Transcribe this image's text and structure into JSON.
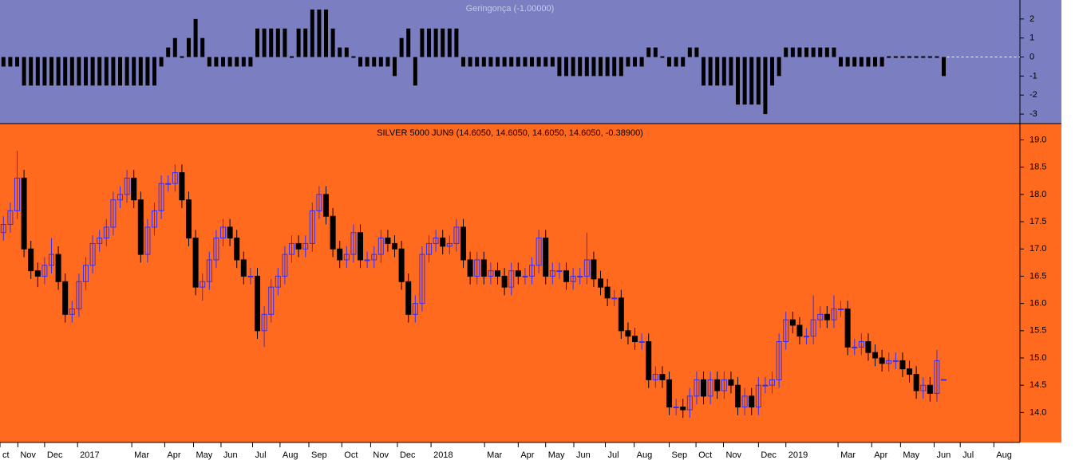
{
  "chart_data": [
    {
      "type": "bar",
      "title": "Geringonça (-1.00000)",
      "color": "#000000",
      "values": [
        -0.5,
        -0.5,
        -0.5,
        -1.5,
        -1.5,
        -1.5,
        -1.5,
        -1.5,
        -1.5,
        -1.5,
        -1.5,
        -1.5,
        -1.5,
        -1.5,
        -1.5,
        -1.5,
        -1.5,
        -1.5,
        -1.5,
        -1.5,
        -1.5,
        -1.5,
        -1.5,
        -0.5,
        0.5,
        1,
        0,
        1,
        2,
        1,
        -0.5,
        -0.5,
        -0.5,
        -0.5,
        -0.5,
        -0.5,
        -0.5,
        1.5,
        1.5,
        1.5,
        1.5,
        1.5,
        0,
        1.5,
        1.5,
        2.5,
        2.5,
        2.5,
        1.5,
        0.5,
        0.5,
        0,
        -0.5,
        -0.5,
        -0.5,
        -0.5,
        -0.5,
        -1,
        1,
        1.5,
        -1.5,
        1.5,
        1.5,
        1.5,
        1.5,
        1.5,
        1.5,
        -0.5,
        -0.5,
        -0.5,
        -0.5,
        -0.5,
        -0.5,
        -0.5,
        -0.5,
        -0.5,
        -0.5,
        -0.5,
        -0.5,
        -0.5,
        -0.5,
        -1,
        -1,
        -1,
        -1,
        -1,
        -1,
        -1,
        -1,
        -1,
        -1,
        -0.5,
        -0.5,
        -0.5,
        0.5,
        0.5,
        0,
        -0.5,
        -0.5,
        -0.5,
        0.5,
        0.5,
        -1.5,
        -1.5,
        -1.5,
        -1.5,
        -1.5,
        -2.5,
        -2.5,
        -2.5,
        -2.5,
        -3,
        -1.5,
        -1,
        0.5,
        0.5,
        0.5,
        0.5,
        0.5,
        0.5,
        0.5,
        0.5,
        -0.5,
        -0.5,
        -0.5,
        -0.5,
        -0.5,
        -0.5,
        -0.5,
        0,
        0,
        0,
        0,
        0,
        0,
        0,
        0,
        -1
      ],
      "xlim": [
        -0.5,
        148.1
      ],
      "ylim": [
        -3.5,
        3
      ],
      "yticks": [
        2,
        1,
        0,
        -1,
        -2,
        -3
      ]
    },
    {
      "type": "candlestick",
      "title": "SILVER 5000 JUN9 (14.6050, 14.6050, 14.6050, 14.6050, -0.38900)",
      "up_color": "#3030ff",
      "down_color": "#000000",
      "open": [
        17.3,
        17.45,
        17.7,
        18.3,
        17.0,
        16.6,
        16.5,
        16.7,
        16.9,
        16.4,
        15.8,
        15.9,
        16.4,
        16.7,
        17.1,
        17.2,
        17.4,
        17.9,
        18.0,
        18.3,
        17.9,
        16.9,
        17.4,
        17.7,
        18.2,
        18.2,
        18.4,
        17.9,
        17.2,
        16.3,
        16.4,
        16.8,
        17.2,
        17.4,
        17.2,
        16.8,
        16.5,
        16.5,
        15.5,
        15.8,
        16.3,
        16.5,
        16.9,
        17.1,
        17.0,
        17.1,
        17.7,
        18.0,
        17.6,
        17.0,
        16.8,
        16.9,
        17.3,
        16.8,
        16.8,
        16.9,
        17.2,
        17.1,
        17.0,
        16.4,
        15.8,
        16.0,
        16.9,
        17.1,
        17.2,
        17.05,
        17.1,
        17.4,
        16.8,
        16.5,
        16.8,
        16.5,
        16.6,
        16.5,
        16.3,
        16.6,
        16.5,
        16.5,
        16.7,
        17.2,
        16.5,
        16.6,
        16.6,
        16.4,
        16.5,
        16.5,
        16.8,
        16.45,
        16.3,
        16.1,
        16.1,
        15.5,
        15.4,
        15.3,
        15.3,
        14.6,
        14.7,
        14.6,
        14.1,
        14.1,
        14.05,
        14.3,
        14.6,
        14.3,
        14.6,
        14.4,
        14.6,
        14.5,
        14.1,
        14.3,
        14.1,
        14.5,
        14.5,
        14.6,
        15.3,
        15.7,
        15.6,
        15.4,
        15.4,
        15.7,
        15.8,
        15.7,
        15.9,
        15.9,
        15.2,
        15.2,
        15.3,
        15.1,
        15.0,
        14.9,
        14.95,
        14.95,
        14.8,
        14.7,
        14.4,
        14.5,
        14.35,
        14.605
      ],
      "high": [
        17.6,
        17.85,
        18.8,
        18.45,
        17.15,
        16.75,
        16.85,
        17.2,
        17.05,
        16.55,
        16.05,
        16.55,
        16.85,
        17.25,
        17.35,
        17.55,
        18.05,
        18.15,
        18.45,
        18.45,
        18.05,
        17.55,
        17.85,
        18.35,
        18.35,
        18.55,
        18.55,
        18.05,
        17.35,
        16.55,
        16.95,
        17.35,
        17.55,
        17.55,
        17.35,
        16.95,
        16.65,
        16.65,
        15.95,
        16.45,
        16.65,
        17.05,
        17.25,
        17.25,
        17.25,
        17.85,
        18.15,
        18.15,
        17.75,
        17.15,
        17.05,
        17.45,
        17.45,
        16.95,
        17.05,
        17.35,
        17.35,
        17.25,
        17.15,
        16.55,
        16.15,
        17.05,
        17.25,
        17.35,
        17.35,
        17.25,
        17.55,
        17.55,
        16.95,
        16.95,
        16.95,
        16.75,
        16.75,
        16.65,
        16.75,
        16.75,
        16.65,
        16.85,
        17.35,
        17.35,
        16.75,
        16.75,
        16.75,
        16.65,
        16.65,
        17.3,
        16.95,
        16.6,
        16.45,
        16.25,
        16.25,
        15.65,
        15.55,
        15.45,
        15.45,
        14.85,
        14.85,
        14.75,
        14.25,
        14.25,
        14.45,
        14.75,
        14.75,
        14.75,
        14.75,
        14.75,
        14.75,
        14.65,
        14.45,
        14.45,
        14.65,
        14.65,
        14.75,
        15.45,
        15.85,
        15.85,
        15.75,
        15.55,
        16.15,
        15.95,
        15.95,
        16.15,
        16.05,
        16.05,
        15.35,
        15.45,
        15.45,
        15.25,
        15.15,
        15.1,
        15.1,
        15.1,
        14.95,
        14.85,
        14.65,
        14.65,
        15.15,
        14.605
      ],
      "low": [
        17.15,
        17.3,
        17.55,
        16.85,
        16.45,
        16.3,
        16.35,
        16.55,
        16.25,
        15.65,
        15.65,
        15.75,
        16.25,
        16.55,
        16.95,
        17.05,
        17.25,
        17.75,
        17.85,
        17.75,
        16.75,
        16.75,
        17.25,
        17.55,
        18.05,
        18.05,
        17.75,
        17.05,
        16.15,
        16.05,
        16.25,
        16.65,
        17.05,
        17.05,
        16.65,
        16.35,
        16.35,
        15.35,
        15.2,
        15.65,
        16.15,
        16.35,
        16.75,
        16.85,
        16.85,
        16.95,
        17.55,
        17.45,
        16.85,
        16.65,
        16.65,
        16.75,
        16.65,
        16.65,
        16.65,
        16.75,
        16.95,
        16.85,
        16.25,
        15.65,
        15.65,
        15.85,
        16.75,
        16.95,
        16.9,
        16.9,
        16.95,
        16.65,
        16.35,
        16.35,
        16.35,
        16.35,
        16.35,
        16.15,
        16.15,
        16.35,
        16.35,
        16.35,
        16.55,
        16.35,
        16.35,
        16.45,
        16.25,
        16.25,
        16.35,
        16.35,
        16.3,
        16.15,
        15.95,
        15.95,
        15.35,
        15.25,
        15.15,
        15.15,
        14.45,
        14.45,
        14.45,
        13.95,
        13.95,
        13.9,
        13.9,
        14.15,
        14.15,
        14.15,
        14.25,
        14.25,
        14.35,
        13.95,
        13.95,
        13.95,
        13.95,
        14.35,
        14.35,
        14.45,
        15.15,
        15.45,
        15.25,
        15.25,
        15.25,
        15.55,
        15.55,
        15.55,
        15.75,
        15.05,
        15.05,
        15.05,
        14.95,
        14.85,
        14.75,
        14.75,
        14.8,
        14.65,
        14.55,
        14.25,
        14.25,
        14.2,
        14.2,
        14.605
      ],
      "close": [
        17.45,
        17.7,
        18.3,
        17.0,
        16.6,
        16.5,
        16.7,
        16.9,
        16.4,
        15.8,
        15.9,
        16.4,
        16.7,
        17.1,
        17.2,
        17.4,
        17.9,
        18.0,
        18.3,
        17.9,
        16.9,
        17.4,
        17.7,
        18.2,
        18.2,
        18.4,
        17.9,
        17.2,
        16.3,
        16.4,
        16.8,
        17.2,
        17.4,
        17.2,
        16.8,
        16.5,
        16.5,
        15.5,
        15.8,
        16.3,
        16.5,
        16.9,
        17.1,
        17.0,
        17.1,
        17.7,
        18.0,
        17.6,
        17.0,
        16.8,
        16.9,
        17.3,
        16.8,
        16.8,
        16.9,
        17.2,
        17.1,
        17.0,
        16.4,
        15.8,
        16.0,
        16.9,
        17.1,
        17.2,
        17.05,
        17.1,
        17.4,
        16.8,
        16.5,
        16.8,
        16.5,
        16.6,
        16.5,
        16.3,
        16.6,
        16.5,
        16.5,
        16.7,
        17.2,
        16.5,
        16.6,
        16.6,
        16.4,
        16.5,
        16.5,
        16.8,
        16.45,
        16.3,
        16.1,
        16.1,
        15.5,
        15.4,
        15.3,
        15.3,
        14.6,
        14.7,
        14.6,
        14.1,
        14.1,
        14.05,
        14.3,
        14.6,
        14.3,
        14.6,
        14.4,
        14.6,
        14.5,
        14.1,
        14.3,
        14.1,
        14.5,
        14.5,
        14.6,
        15.3,
        15.7,
        15.6,
        15.4,
        15.4,
        15.7,
        15.8,
        15.7,
        15.9,
        15.9,
        15.2,
        15.2,
        15.3,
        15.1,
        15.0,
        14.9,
        14.95,
        14.95,
        14.8,
        14.7,
        14.4,
        14.5,
        14.35,
        14.95,
        14.605
      ],
      "xlim": [
        -0.5,
        148.1
      ],
      "ylim": [
        13.45,
        19.3
      ],
      "yticks": [
        {
          "value": 14,
          "label": "14.0"
        },
        {
          "value": 14.5,
          "label": "14.5"
        },
        {
          "value": 15,
          "label": "15.0"
        },
        {
          "value": 15.5,
          "label": "15.5"
        },
        {
          "value": 16,
          "label": "16.0"
        },
        {
          "value": 16.5,
          "label": "16.5"
        },
        {
          "value": 17,
          "label": "17.0"
        },
        {
          "value": 17.5,
          "label": "17.5"
        },
        {
          "value": 18,
          "label": "18.0"
        },
        {
          "value": 18.5,
          "label": "18.5"
        },
        {
          "value": 19,
          "label": "19.0"
        }
      ],
      "xticks": [
        {
          "value": -0.5,
          "label": "ct"
        },
        {
          "value": 2.1,
          "label": "Nov"
        },
        {
          "value": 6,
          "label": "Dec"
        },
        {
          "value": 10.8,
          "label": "2017"
        },
        {
          "value": 18.7,
          "label": "Mar"
        },
        {
          "value": 23.5,
          "label": "Apr"
        },
        {
          "value": 27.7,
          "label": "May"
        },
        {
          "value": 31.7,
          "label": "Jun"
        },
        {
          "value": 36.3,
          "label": "Jul"
        },
        {
          "value": 40.3,
          "label": "Aug"
        },
        {
          "value": 44.5,
          "label": "Sep"
        },
        {
          "value": 49.3,
          "label": "Oct"
        },
        {
          "value": 53.5,
          "label": "Nov"
        },
        {
          "value": 57.4,
          "label": "Dec"
        },
        {
          "value": 62.3,
          "label": "2018"
        },
        {
          "value": 70.1,
          "label": "Mar"
        },
        {
          "value": 75,
          "label": "Apr"
        },
        {
          "value": 79,
          "label": "May"
        },
        {
          "value": 83.1,
          "label": "Jun"
        },
        {
          "value": 87.7,
          "label": "Jul"
        },
        {
          "value": 91.9,
          "label": "Aug"
        },
        {
          "value": 97,
          "label": "Sep"
        },
        {
          "value": 100.9,
          "label": "Oct"
        },
        {
          "value": 104.9,
          "label": "Nov"
        },
        {
          "value": 110,
          "label": "Dec"
        },
        {
          "value": 114,
          "label": "2019"
        },
        {
          "value": 121.6,
          "label": "Mar"
        },
        {
          "value": 126.5,
          "label": "Apr"
        },
        {
          "value": 130.7,
          "label": "May"
        },
        {
          "value": 135.6,
          "label": "Jun"
        },
        {
          "value": 139.4,
          "label": "Jul"
        },
        {
          "value": 144.3,
          "label": "Aug"
        }
      ]
    }
  ]
}
